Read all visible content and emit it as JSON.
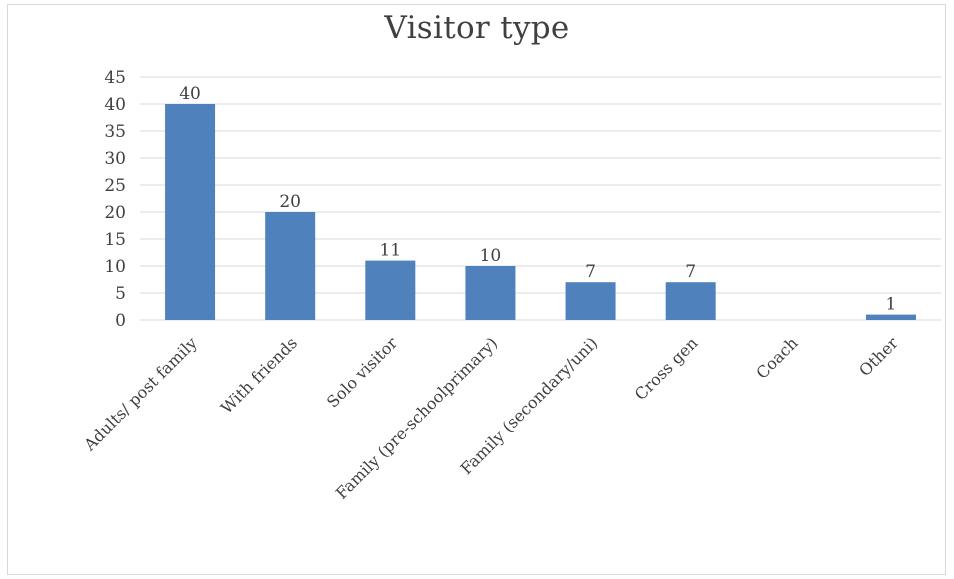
{
  "chart_data": {
    "type": "bar",
    "title": "Visitor type",
    "xlabel": "",
    "ylabel": "",
    "categories": [
      "Adults/ post family",
      "With friends",
      "Solo visitor",
      "Family (pre-schoolprimary)",
      "Family (secondary/uni)",
      "Cross gen",
      "Coach",
      "Other"
    ],
    "values": [
      40,
      20,
      11,
      10,
      7,
      7,
      null,
      1
    ],
    "data_labels": [
      "40",
      "20",
      "11",
      "10",
      "7",
      "7",
      "",
      "1"
    ],
    "ylim": [
      0,
      45
    ],
    "yticks": [
      0,
      5,
      10,
      15,
      20,
      25,
      30,
      35,
      40,
      45
    ],
    "grid": true,
    "legend": "none",
    "colors": {
      "bar": "#4f81bd",
      "grid": "#d9d9d9",
      "text": "#404040"
    }
  }
}
